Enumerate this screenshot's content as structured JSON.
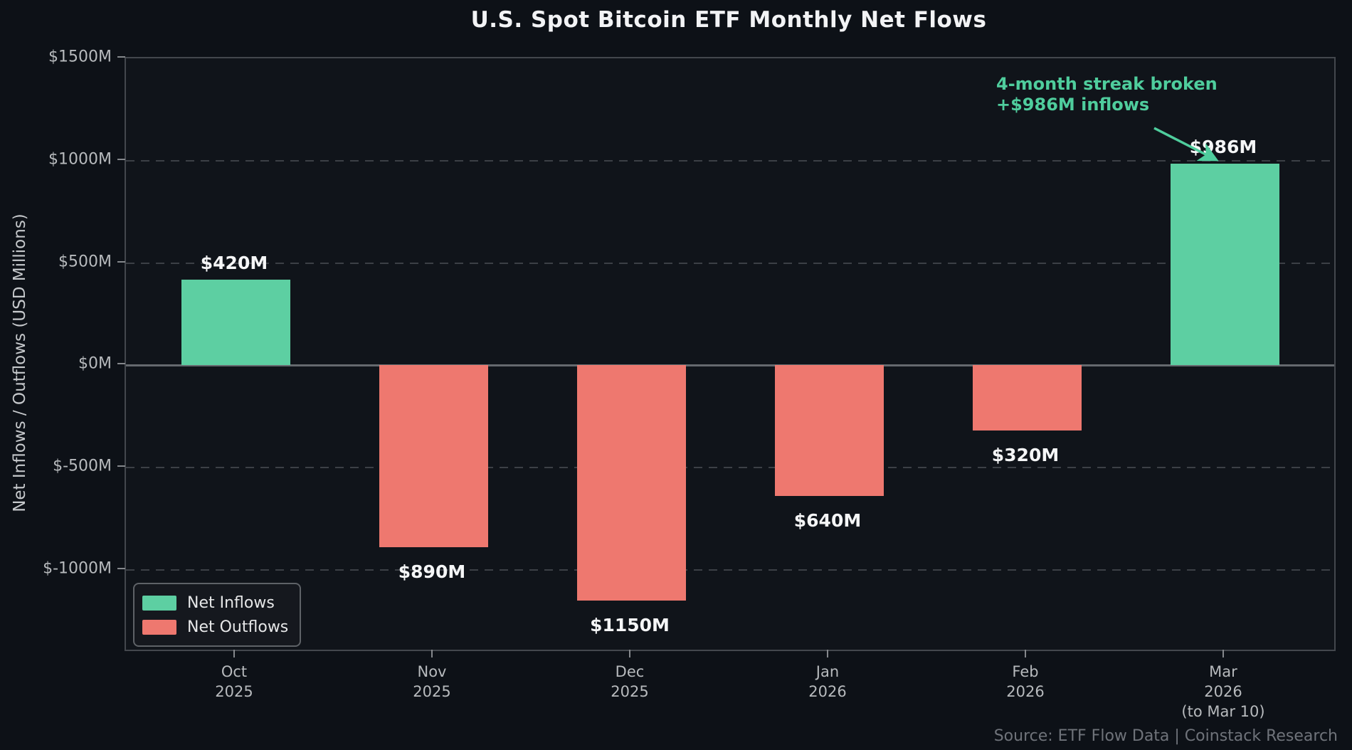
{
  "title": "U.S. Spot Bitcoin ETF Monthly Net Flows",
  "chart_data": {
    "type": "bar",
    "title": "U.S. Spot Bitcoin ETF Monthly Net Flows",
    "xlabel": "",
    "ylabel": "Net Inflows / Outflows (USD Millions)",
    "ylim": [
      -1390,
      1500
    ],
    "grid": "horizontal dashed",
    "legend_position": "lower left",
    "categories": [
      [
        "Oct",
        "2025"
      ],
      [
        "Nov",
        "2025"
      ],
      [
        "Dec",
        "2025"
      ],
      [
        "Jan",
        "2026"
      ],
      [
        "Feb",
        "2026"
      ],
      [
        "Mar",
        "2026",
        "(to Mar 10)"
      ]
    ],
    "values": [
      420,
      -890,
      -1150,
      -640,
      -320,
      986
    ],
    "bar_labels": [
      "$420M",
      "$890M",
      "$1150M",
      "$640M",
      "$320M",
      "$986M"
    ],
    "y_ticks": [
      {
        "value": 1500,
        "label": "$1500M"
      },
      {
        "value": 1000,
        "label": "$1000M"
      },
      {
        "value": 500,
        "label": "$500M"
      },
      {
        "value": 0,
        "label": "$0M"
      },
      {
        "value": -500,
        "label": "$-500M"
      },
      {
        "value": -1000,
        "label": "$-1000M"
      }
    ],
    "colors": {
      "inflow": "#5dcfa2",
      "outflow": "#ee786f",
      "annotation": "#4fcd9d",
      "background": "#0d1117"
    }
  },
  "legend": {
    "items": [
      {
        "label": "Net Inflows",
        "color": "#5dcfa2"
      },
      {
        "label": "Net Outflows",
        "color": "#ee786f"
      }
    ]
  },
  "annotation": {
    "line1": "4-month streak broken",
    "line2": "+$986M inflows",
    "points_to": "Mar 2026 bar"
  },
  "source": "Source: ETF Flow Data | Coinstack Research"
}
